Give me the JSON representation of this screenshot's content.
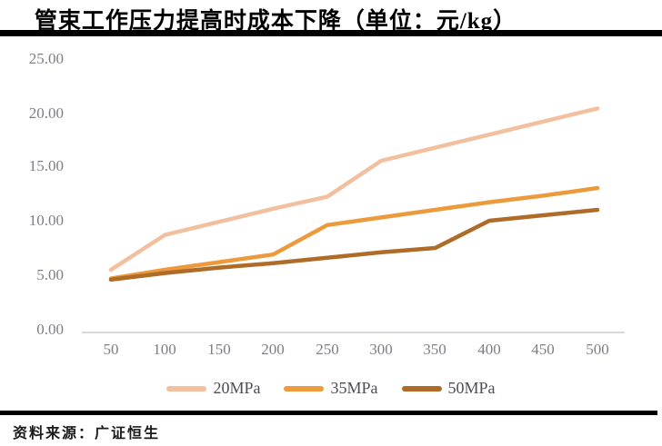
{
  "title": "管束工作压力提高时成本下降（单位：元/kg）",
  "source": "资料来源：广证恒生",
  "colors": {
    "series_20mpa": "#F2C09E",
    "series_35mpa": "#EC9A3C",
    "series_50mpa": "#AE6C28",
    "axis_line": "#d9d9d9",
    "tick_text": "#7e7e86",
    "rule": "#000000"
  },
  "chart_data": {
    "type": "line",
    "title": "管束工作压力提高时成本下降（单位：元/kg）",
    "xlabel": "",
    "ylabel": "",
    "categories": [
      50,
      100,
      150,
      200,
      250,
      300,
      350,
      400,
      450,
      500
    ],
    "series": [
      {
        "name": "20MPa",
        "color": "#F2C09E",
        "values": [
          5.5,
          8.7,
          9.9,
          11.1,
          12.2,
          15.5,
          16.7,
          17.9,
          19.1,
          20.3
        ]
      },
      {
        "name": "35MPa",
        "color": "#EC9A3C",
        "values": [
          4.7,
          5.5,
          6.2,
          6.9,
          9.6,
          10.3,
          11.0,
          11.7,
          12.3,
          13.0
        ]
      },
      {
        "name": "50MPa",
        "color": "#AE6C28",
        "values": [
          4.6,
          5.2,
          5.7,
          6.1,
          6.6,
          7.1,
          7.5,
          10.0,
          10.5,
          11.0
        ]
      }
    ],
    "ylim": [
      0,
      25
    ],
    "ytick_step": 5,
    "yticks_top_to_bottom": [
      "25.00",
      "20.00",
      "15.00",
      "10.00",
      "5.00",
      "0.00"
    ],
    "xticklabels": [
      "50",
      "100",
      "150",
      "200",
      "250",
      "300",
      "350",
      "400",
      "450",
      "500"
    ],
    "grid": false,
    "legend_position": "bottom"
  }
}
